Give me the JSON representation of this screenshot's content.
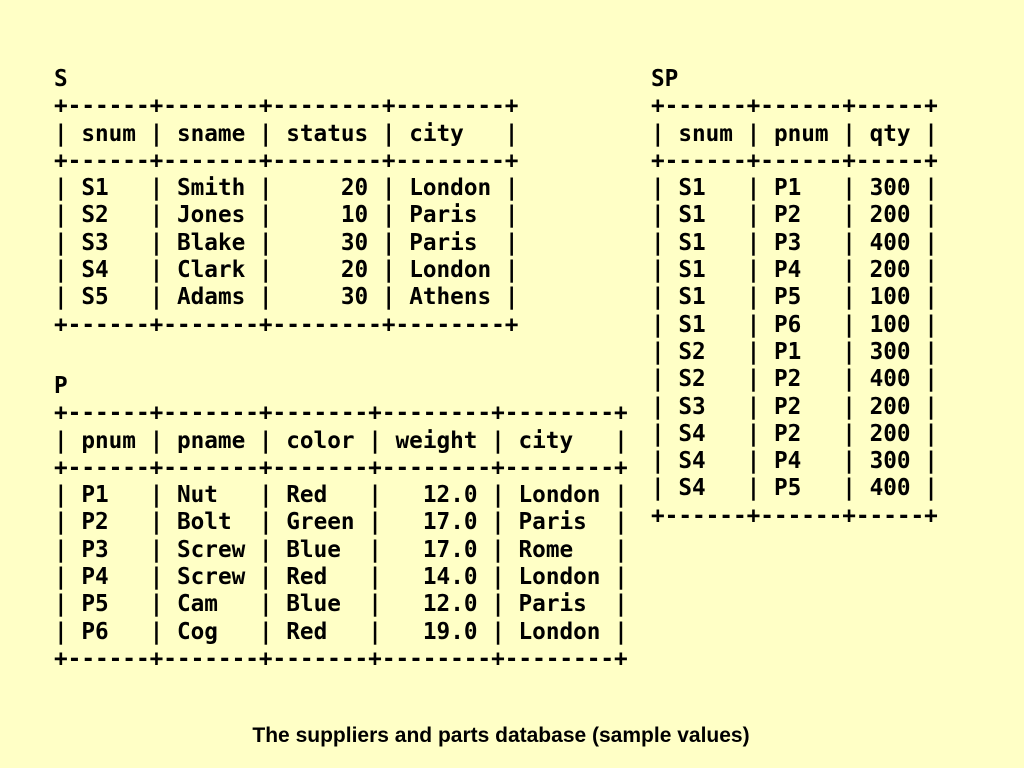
{
  "tables": [
    {
      "id": "s",
      "name": "S",
      "columns": [
        "snum",
        "sname",
        "status",
        "city"
      ],
      "align": [
        "left",
        "left",
        "right",
        "left"
      ],
      "rows": [
        [
          "S1",
          "Smith",
          "20",
          "London"
        ],
        [
          "S2",
          "Jones",
          "10",
          "Paris"
        ],
        [
          "S3",
          "Blake",
          "30",
          "Paris"
        ],
        [
          "S4",
          "Clark",
          "20",
          "London"
        ],
        [
          "S5",
          "Adams",
          "30",
          "Athens"
        ]
      ]
    },
    {
      "id": "sp",
      "name": "SP",
      "columns": [
        "snum",
        "pnum",
        "qty"
      ],
      "align": [
        "left",
        "left",
        "right"
      ],
      "rows": [
        [
          "S1",
          "P1",
          "300"
        ],
        [
          "S1",
          "P2",
          "200"
        ],
        [
          "S1",
          "P3",
          "400"
        ],
        [
          "S1",
          "P4",
          "200"
        ],
        [
          "S1",
          "P5",
          "100"
        ],
        [
          "S1",
          "P6",
          "100"
        ],
        [
          "S2",
          "P1",
          "300"
        ],
        [
          "S2",
          "P2",
          "400"
        ],
        [
          "S3",
          "P2",
          "200"
        ],
        [
          "S4",
          "P2",
          "200"
        ],
        [
          "S4",
          "P4",
          "300"
        ],
        [
          "S4",
          "P5",
          "400"
        ]
      ]
    },
    {
      "id": "p",
      "name": "P",
      "columns": [
        "pnum",
        "pname",
        "color",
        "weight",
        "city"
      ],
      "align": [
        "left",
        "left",
        "left",
        "right",
        "left"
      ],
      "rows": [
        [
          "P1",
          "Nut",
          "Red",
          "12.0",
          "London"
        ],
        [
          "P2",
          "Bolt",
          "Green",
          "17.0",
          "Paris"
        ],
        [
          "P3",
          "Screw",
          "Blue",
          "17.0",
          "Rome"
        ],
        [
          "P4",
          "Screw",
          "Red",
          "14.0",
          "London"
        ],
        [
          "P5",
          "Cam",
          "Blue",
          "12.0",
          "Paris"
        ],
        [
          "P6",
          "Cog",
          "Red",
          "19.0",
          "London"
        ]
      ]
    }
  ],
  "caption": "The suppliers and parts database (sample values)"
}
